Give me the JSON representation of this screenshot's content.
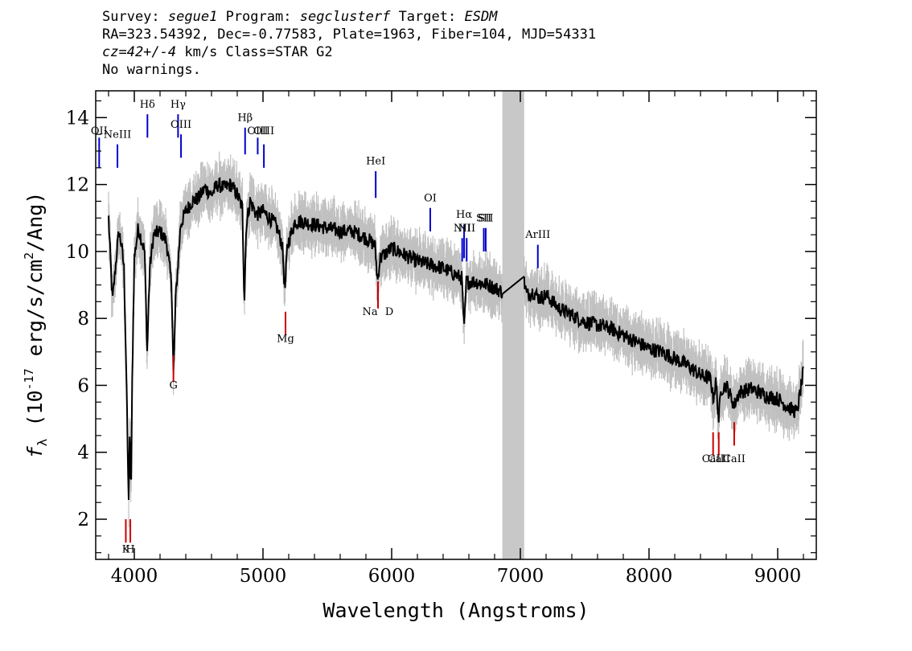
{
  "header": {
    "line1": {
      "survey_label": "Survey:",
      "survey": "segue1",
      "program_label": "Program:",
      "program": "segclusterf",
      "target_label": "Target:",
      "target": "ESDM"
    },
    "line2": "RA=323.54392, Dec=-0.77583, Plate=1963, Fiber=104, MJD=54331",
    "line3": {
      "cz": "cz=42+/-4",
      "rest": " km/s Class=STAR G2"
    },
    "line4": "No warnings."
  },
  "chart_data": {
    "type": "line",
    "title": "",
    "xlabel": "Wavelength (Angstroms)",
    "ylabel_prefix": "f",
    "ylabel_sub": "λ",
    "ylabel_unit_a": " (10",
    "ylabel_exp": "-17",
    "ylabel_unit_b": " erg/s/cm",
    "ylabel_exp2": "2",
    "ylabel_unit_c": "/Ang)",
    "xlim": [
      3700,
      9300
    ],
    "ylim": [
      0.8,
      14.8
    ],
    "xticks": [
      4000,
      5000,
      6000,
      7000,
      8000,
      9000
    ],
    "yticks": [
      2,
      4,
      6,
      8,
      10,
      12,
      14
    ],
    "masked_region": [
      6860,
      7030
    ],
    "colors": {
      "flux": "#000000",
      "error": "#c0c0c0",
      "emission": "#0000cc",
      "absorption": "#cc0000",
      "mask": "#c8c8c8"
    },
    "spectrum_knots": [
      [
        3800,
        11.0
      ],
      [
        3830,
        8.5
      ],
      [
        3860,
        9.8
      ],
      [
        3880,
        10.6
      ],
      [
        3900,
        10.2
      ],
      [
        3920,
        9.5
      ],
      [
        3940,
        6.0
      ],
      [
        3955,
        2.5
      ],
      [
        3965,
        4.5
      ],
      [
        3975,
        2.8
      ],
      [
        3985,
        6.5
      ],
      [
        4000,
        9.8
      ],
      [
        4030,
        10.7
      ],
      [
        4060,
        10.3
      ],
      [
        4080,
        10.0
      ],
      [
        4100,
        7.0
      ],
      [
        4120,
        9.5
      ],
      [
        4150,
        10.5
      ],
      [
        4200,
        10.6
      ],
      [
        4250,
        10.3
      ],
      [
        4290,
        9.0
      ],
      [
        4305,
        6.2
      ],
      [
        4320,
        8.5
      ],
      [
        4360,
        10.8
      ],
      [
        4400,
        11.2
      ],
      [
        4450,
        11.5
      ],
      [
        4500,
        11.6
      ],
      [
        4550,
        11.9
      ],
      [
        4600,
        11.7
      ],
      [
        4650,
        12.0
      ],
      [
        4700,
        11.9
      ],
      [
        4750,
        12.0
      ],
      [
        4800,
        11.7
      ],
      [
        4840,
        11.3
      ],
      [
        4855,
        8.5
      ],
      [
        4870,
        10.8
      ],
      [
        4900,
        11.5
      ],
      [
        4950,
        11.1
      ],
      [
        5000,
        11.2
      ],
      [
        5050,
        11.0
      ],
      [
        5100,
        10.8
      ],
      [
        5150,
        10.2
      ],
      [
        5170,
        8.8
      ],
      [
        5190,
        10.2
      ],
      [
        5250,
        10.9
      ],
      [
        5300,
        10.9
      ],
      [
        5400,
        10.8
      ],
      [
        5500,
        10.7
      ],
      [
        5600,
        10.6
      ],
      [
        5700,
        10.6
      ],
      [
        5800,
        10.4
      ],
      [
        5870,
        10.2
      ],
      [
        5890,
        9.1
      ],
      [
        5910,
        9.8
      ],
      [
        6000,
        10.1
      ],
      [
        6100,
        9.9
      ],
      [
        6200,
        9.7
      ],
      [
        6300,
        9.6
      ],
      [
        6400,
        9.5
      ],
      [
        6500,
        9.3
      ],
      [
        6545,
        9.2
      ],
      [
        6563,
        7.6
      ],
      [
        6580,
        9.1
      ],
      [
        6650,
        9.1
      ],
      [
        6750,
        9.0
      ],
      [
        6860,
        8.8
      ]
    ],
    "spectrum_knots_red": [
      [
        7030,
        9.1
      ],
      [
        7050,
        8.7
      ],
      [
        7100,
        8.8
      ],
      [
        7150,
        8.6
      ],
      [
        7200,
        8.7
      ],
      [
        7300,
        8.3
      ],
      [
        7400,
        8.1
      ],
      [
        7500,
        7.9
      ],
      [
        7600,
        7.8
      ],
      [
        7700,
        7.7
      ],
      [
        7800,
        7.5
      ],
      [
        7900,
        7.3
      ],
      [
        8000,
        7.1
      ],
      [
        8100,
        7.0
      ],
      [
        8200,
        6.8
      ],
      [
        8300,
        6.6
      ],
      [
        8400,
        6.3
      ],
      [
        8480,
        6.2
      ],
      [
        8498,
        5.6
      ],
      [
        8520,
        6.1
      ],
      [
        8542,
        5.0
      ],
      [
        8560,
        5.9
      ],
      [
        8600,
        6.0
      ],
      [
        8662,
        5.4
      ],
      [
        8700,
        5.8
      ],
      [
        8800,
        5.9
      ],
      [
        8900,
        5.7
      ],
      [
        9000,
        5.6
      ],
      [
        9100,
        5.3
      ],
      [
        9150,
        5.2
      ],
      [
        9200,
        6.4
      ]
    ],
    "emission_lines": [
      {
        "label": "OII",
        "x": 3727,
        "y0": 12.5,
        "y1": 13.4,
        "ly": 13.5
      },
      {
        "label": "NeIII",
        "x": 3869,
        "y0": 12.5,
        "y1": 13.2,
        "ly": 13.4
      },
      {
        "label": "Hδ",
        "x": 4102,
        "y0": 13.4,
        "y1": 14.1,
        "ly": 14.3
      },
      {
        "label": "Hγ",
        "x": 4340,
        "y0": 13.4,
        "y1": 14.1,
        "ly": 14.3
      },
      {
        "label": "OIII",
        "x": 4363,
        "y0": 12.8,
        "y1": 13.5,
        "ly": 13.7
      },
      {
        "label": "Hβ",
        "x": 4861,
        "y0": 12.9,
        "y1": 13.7,
        "ly": 13.9
      },
      {
        "label": "OIII",
        "x": 4959,
        "y0": 12.9,
        "y1": 13.4,
        "ly": 13.5
      },
      {
        "label": "OIII",
        "x": 5007,
        "y0": 12.5,
        "y1": 13.2,
        "ly": 13.5
      },
      {
        "label": "HeI",
        "x": 5876,
        "y0": 11.6,
        "y1": 12.4,
        "ly": 12.6
      },
      {
        "label": "OI",
        "x": 6300,
        "y0": 10.6,
        "y1": 11.3,
        "ly": 11.5
      },
      {
        "label": "NII",
        "x": 6548,
        "y0": 9.7,
        "y1": 10.4,
        "ly": 10.6
      },
      {
        "label": "Hα",
        "x": 6563,
        "y0": 9.8,
        "y1": 10.8,
        "ly": 11.0
      },
      {
        "label": "NII",
        "x": 6583,
        "y0": 9.7,
        "y1": 10.4,
        "ly": 10.6
      },
      {
        "label": "SII",
        "x": 6716,
        "y0": 10.0,
        "y1": 10.7,
        "ly": 10.9
      },
      {
        "label": "SII",
        "x": 6731,
        "y0": 10.0,
        "y1": 10.7,
        "ly": 10.9
      },
      {
        "label": "ArIII",
        "x": 7136,
        "y0": 9.5,
        "y1": 10.2,
        "ly": 10.4
      }
    ],
    "absorption_lines": [
      {
        "label": "K",
        "x": 3934,
        "y0": 1.3,
        "y1": 2.0,
        "ly": 1.0
      },
      {
        "label": "H",
        "x": 3969,
        "y0": 1.3,
        "y1": 2.0,
        "ly": 1.0
      },
      {
        "label": "G",
        "x": 4304,
        "y0": 6.1,
        "y1": 6.9,
        "ly": 5.9
      },
      {
        "label": "Mg",
        "x": 5175,
        "y0": 7.5,
        "y1": 8.2,
        "ly": 7.3
      },
      {
        "label": "Na",
        "x": 5894,
        "y0": 8.3,
        "y1": 9.1,
        "ly": 8.1
      },
      {
        "label": "D",
        "x": 5894,
        "y0": 8.3,
        "y1": 9.1,
        "ly": 8.1
      },
      {
        "label": "CaII",
        "x": 8498,
        "y0": 3.9,
        "y1": 4.6,
        "ly": 3.7
      },
      {
        "label": "CaII",
        "x": 8542,
        "y0": 3.9,
        "y1": 4.6,
        "ly": 3.7
      },
      {
        "label": "CaII",
        "x": 8662,
        "y0": 4.2,
        "y1": 4.9,
        "ly": 3.7
      }
    ]
  }
}
